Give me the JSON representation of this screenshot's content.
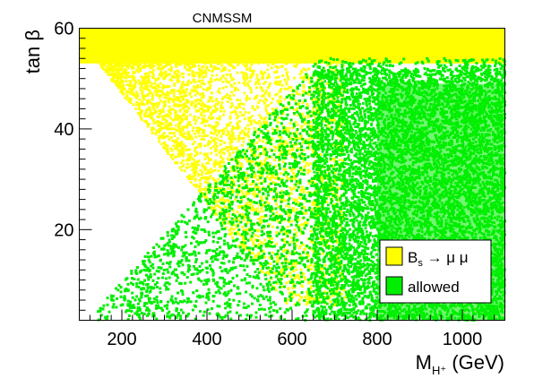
{
  "chart_data": {
    "type": "scatter",
    "title": "CNMSSM",
    "xlabel": "M",
    "xlabel_sub": "H⁺",
    "xlabel_unit": " (GeV)",
    "ylabel": "tan β",
    "xlim": [
      100,
      1100
    ],
    "ylim": [
      2,
      60
    ],
    "x_ticks": [
      200,
      400,
      600,
      800,
      1000
    ],
    "y_ticks": [
      20,
      40,
      60
    ],
    "grid": false,
    "legend_position": "bottom-right",
    "series": [
      {
        "name": "B",
        "name_sub": "s",
        "name_rest": " → μ μ",
        "color": "#ffff00",
        "regions": [
          {
            "desc": "band",
            "x": [
              100,
              1100
            ],
            "y": [
              53,
              60
            ]
          },
          {
            "desc": "scatter",
            "x": [
              110,
              700
            ],
            "y": [
              5,
              57
            ]
          }
        ]
      },
      {
        "name": "allowed",
        "color": "#00ee00",
        "regions": [
          {
            "desc": "scatter",
            "x": [
              130,
              1100
            ],
            "y": [
              2,
              54
            ]
          }
        ]
      }
    ]
  }
}
